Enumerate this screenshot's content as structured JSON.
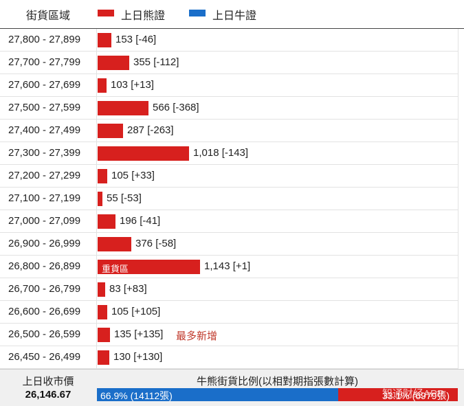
{
  "header": {
    "column_title": "街貨區域",
    "legend": [
      {
        "label": "上日熊證",
        "color": "#d7201e"
      },
      {
        "label": "上日牛證",
        "color": "#1a6ec9"
      }
    ]
  },
  "chart_data": {
    "type": "bar",
    "orientation": "horizontal",
    "series": [
      {
        "name": "上日熊證",
        "color": "#d7201e"
      }
    ],
    "rows": [
      {
        "range": "27,800 - 27,899",
        "value": 153,
        "change": "[-46]",
        "label": "153 [-46]"
      },
      {
        "range": "27,700 - 27,799",
        "value": 355,
        "change": "[-112]",
        "label": "355 [-112]"
      },
      {
        "range": "27,600 - 27,699",
        "value": 103,
        "change": "[+13]",
        "label": "103 [+13]"
      },
      {
        "range": "27,500 - 27,599",
        "value": 566,
        "change": "[-368]",
        "label": "566 [-368]"
      },
      {
        "range": "27,400 - 27,499",
        "value": 287,
        "change": "[-263]",
        "label": "287 [-263]"
      },
      {
        "range": "27,300 - 27,399",
        "value": 1018,
        "change": "[-143]",
        "label": "1,018 [-143]"
      },
      {
        "range": "27,200 - 27,299",
        "value": 105,
        "change": "[+33]",
        "label": "105 [+33]"
      },
      {
        "range": "27,100 - 27,199",
        "value": 55,
        "change": "[-53]",
        "label": "55 [-53]"
      },
      {
        "range": "27,000 - 27,099",
        "value": 196,
        "change": "[-41]",
        "label": "196 [-41]"
      },
      {
        "range": "26,900 - 26,999",
        "value": 376,
        "change": "[-58]",
        "label": "376 [-58]"
      },
      {
        "range": "26,800 - 26,899",
        "value": 1143,
        "change": "[+1]",
        "label": "1,143 [+1]",
        "bar_text": "重貨區"
      },
      {
        "range": "26,700 - 26,799",
        "value": 83,
        "change": "[+83]",
        "label": "83 [+83]"
      },
      {
        "range": "26,600 - 26,699",
        "value": 105,
        "change": "[+105]",
        "label": "105 [+105]"
      },
      {
        "range": "26,500 - 26,599",
        "value": 135,
        "change": "[+135]",
        "label": "135 [+135]",
        "note": "最多新增"
      },
      {
        "range": "26,450 - 26,499",
        "value": 130,
        "change": "[+130]",
        "label": "130 [+130]"
      }
    ],
    "value_max": 1143
  },
  "footer": {
    "close_label": "上日收市價",
    "close_value": "26,146.67",
    "ratio_title": "牛熊街貨比例(以相對期指張數計算)",
    "bull_percent": 66.9,
    "bull_text": "66.9% (14112張)",
    "bear_text": "33.1% (6979張)",
    "watermark": "智通财经APP"
  }
}
